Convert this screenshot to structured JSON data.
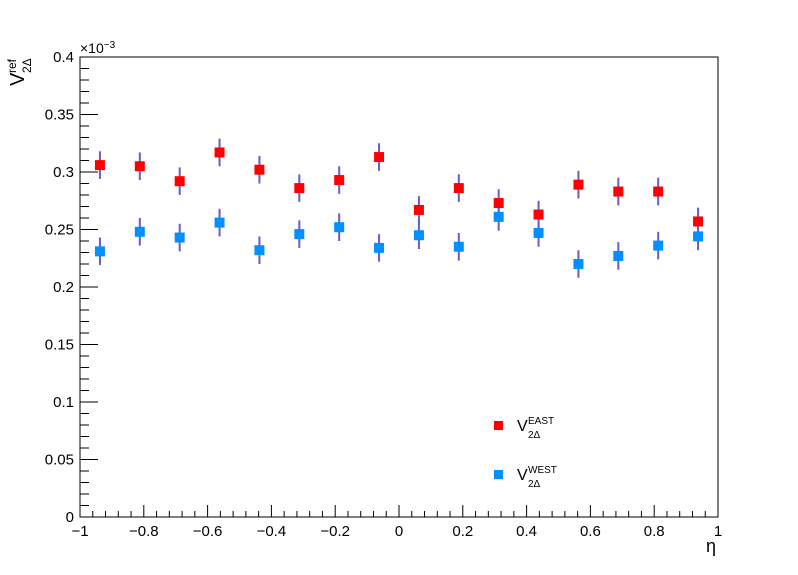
{
  "chart_data": {
    "type": "scatter",
    "title": "",
    "xlabel": "η",
    "ylabel": {
      "base": "V",
      "sup": "ref",
      "sub": "2Δ"
    },
    "y_exponent": "×10",
    "y_exponent_power": "−3",
    "xlim": [
      -1,
      1
    ],
    "ylim": [
      0,
      0.4
    ],
    "x_ticks": [
      -1,
      -0.8,
      -0.6,
      -0.4,
      -0.2,
      0,
      0.2,
      0.4,
      0.6,
      0.8,
      1
    ],
    "x_tick_labels": [
      "−1",
      "−0.8",
      "−0.6",
      "−0.4",
      "−0.2",
      "0",
      "0.2",
      "0.4",
      "0.6",
      "0.8",
      "1"
    ],
    "y_ticks": [
      0,
      0.05,
      0.1,
      0.15,
      0.2,
      0.25,
      0.3,
      0.35,
      0.4
    ],
    "y_tick_labels": [
      "0",
      "0.05",
      "0.1",
      "0.15",
      "0.2",
      "0.25",
      "0.3",
      "0.35",
      "0.4"
    ],
    "grid": false,
    "legend_position": "bottom-center",
    "error_bar_color": "#6a5acd",
    "series": [
      {
        "name": "V_{2Δ}^{EAST}",
        "legend_base": "V",
        "legend_sup": "EAST",
        "legend_sub": "2Δ",
        "color": "#ff0000",
        "x": [
          -0.9375,
          -0.8125,
          -0.6875,
          -0.5625,
          -0.4375,
          -0.3125,
          -0.1875,
          -0.0625,
          0.0625,
          0.1875,
          0.3125,
          0.4375,
          0.5625,
          0.6875,
          0.8125,
          0.9375
        ],
        "y": [
          0.306,
          0.305,
          0.292,
          0.317,
          0.302,
          0.286,
          0.293,
          0.313,
          0.267,
          0.286,
          0.273,
          0.263,
          0.289,
          0.283,
          0.283,
          0.257
        ],
        "err": [
          0.012,
          0.012,
          0.012,
          0.012,
          0.012,
          0.012,
          0.012,
          0.012,
          0.012,
          0.012,
          0.012,
          0.012,
          0.012,
          0.012,
          0.012,
          0.012
        ]
      },
      {
        "name": "V_{2Δ}^{WEST}",
        "legend_base": "V",
        "legend_sup": "WEST",
        "legend_sub": "2Δ",
        "color": "#0090ff",
        "x": [
          -0.9375,
          -0.8125,
          -0.6875,
          -0.5625,
          -0.4375,
          -0.3125,
          -0.1875,
          -0.0625,
          0.0625,
          0.1875,
          0.3125,
          0.4375,
          0.5625,
          0.6875,
          0.8125,
          0.9375
        ],
        "y": [
          0.231,
          0.248,
          0.243,
          0.256,
          0.232,
          0.246,
          0.252,
          0.234,
          0.245,
          0.235,
          0.261,
          0.247,
          0.22,
          0.227,
          0.236,
          0.244
        ],
        "err": [
          0.012,
          0.012,
          0.012,
          0.012,
          0.012,
          0.012,
          0.012,
          0.012,
          0.012,
          0.012,
          0.012,
          0.012,
          0.012,
          0.012,
          0.012,
          0.012
        ]
      }
    ]
  }
}
